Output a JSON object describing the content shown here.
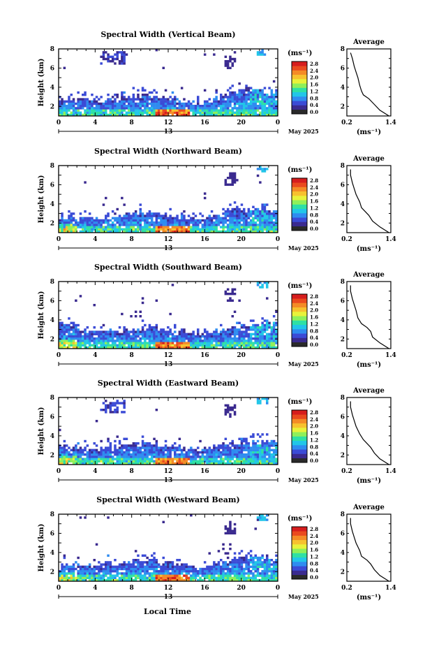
{
  "figure": {
    "footer_label": "Local Time",
    "date_label": "May 2025",
    "colorbar_unit": "(ms⁻¹)",
    "avg_unit": "(ms⁻¹)",
    "avg_title": "Average",
    "colorbar_ticks": [
      "0.0",
      "0.4",
      "0.8",
      "1.2",
      "1.6",
      "2.0",
      "2.4",
      "2.8"
    ],
    "colorbar_colors": [
      "#2a2a2a",
      "#3a2a8f",
      "#3b4bd6",
      "#2f8cf0",
      "#22c6e8",
      "#2fe0a4",
      "#8ff05a",
      "#e8f23a",
      "#f7c12e",
      "#f48b26",
      "#ea4a1e",
      "#d61d1d"
    ]
  },
  "chart_data": [
    {
      "type": "heatmap",
      "title": "Spectral Width (Vertical Beam)",
      "ylabel": "Height (km)",
      "xlabel": "Local Time",
      "x_ticks": [
        "0",
        "4",
        "8",
        "12",
        "16",
        "20",
        "0"
      ],
      "x_day": "13",
      "xlim": [
        0,
        24
      ],
      "y_ticks": [
        "2",
        "4",
        "6",
        "8"
      ],
      "ylim": [
        1,
        8
      ],
      "colorbar_range": [
        0.0,
        2.8
      ],
      "cloud_top_km": [
        2.6,
        2.7,
        2.8,
        2.7,
        2.6,
        2.7,
        2.9,
        3.0,
        3.1,
        3.1,
        3.0,
        3.0,
        2.8,
        2.5,
        2.4,
        2.4,
        2.6,
        2.9,
        3.3,
        3.6,
        3.8,
        3.7,
        3.6,
        3.5
      ],
      "average_profile": {
        "x": [
          1.35,
          1.1,
          0.95,
          0.8,
          0.65,
          0.6,
          0.55,
          0.5,
          0.45,
          0.4,
          0.35,
          0.3
        ],
        "y": [
          1.0,
          1.6,
          2.2,
          2.8,
          3.2,
          3.6,
          4.2,
          5.0,
          5.6,
          6.2,
          7.0,
          7.6
        ],
        "xlim": [
          0.2,
          1.4
        ],
        "ylim": [
          1,
          8
        ],
        "x_ticks": [
          "0.2",
          "1.4"
        ],
        "y_ticks": [
          "2",
          "4",
          "6",
          "8"
        ]
      }
    },
    {
      "type": "heatmap",
      "title": "Spectral Width (Northward Beam)",
      "ylabel": "Height (km)",
      "xlabel": "Local Time",
      "x_ticks": [
        "0",
        "4",
        "8",
        "12",
        "16",
        "20",
        "0"
      ],
      "x_day": "13",
      "xlim": [
        0,
        24
      ],
      "y_ticks": [
        "2",
        "4",
        "6",
        "8"
      ],
      "ylim": [
        1,
        8
      ],
      "colorbar_range": [
        0.0,
        2.8
      ],
      "cloud_top_km": [
        2.6,
        2.6,
        2.5,
        2.5,
        2.6,
        2.7,
        2.8,
        3.0,
        3.1,
        3.1,
        3.0,
        2.9,
        2.8,
        2.6,
        2.5,
        2.5,
        2.6,
        2.8,
        3.1,
        3.3,
        3.4,
        3.3,
        3.3,
        3.2
      ],
      "average_profile": {
        "x": [
          1.35,
          1.1,
          0.9,
          0.8,
          0.7,
          0.6,
          0.55,
          0.45,
          0.4,
          0.35,
          0.3,
          0.3
        ],
        "y": [
          1.0,
          1.6,
          2.2,
          2.8,
          3.2,
          3.6,
          4.2,
          5.0,
          5.6,
          6.2,
          7.0,
          7.6
        ],
        "xlim": [
          0.2,
          1.4
        ],
        "ylim": [
          1,
          8
        ],
        "x_ticks": [
          "0.2",
          "1.4"
        ],
        "y_ticks": [
          "2",
          "4",
          "6",
          "8"
        ]
      }
    },
    {
      "type": "heatmap",
      "title": "Spectral Width (Southward Beam)",
      "ylabel": "Height (km)",
      "xlabel": "Local Time",
      "x_ticks": [
        "0",
        "4",
        "8",
        "12",
        "16",
        "20",
        "0"
      ],
      "x_day": "13",
      "xlim": [
        0,
        24
      ],
      "y_ticks": [
        "2",
        "4",
        "6",
        "8"
      ],
      "ylim": [
        1,
        8
      ],
      "colorbar_range": [
        0.0,
        2.8
      ],
      "cloud_top_km": [
        3.6,
        3.4,
        3.0,
        2.8,
        2.7,
        2.7,
        2.8,
        2.9,
        3.0,
        3.1,
        3.1,
        3.0,
        2.9,
        2.8,
        2.6,
        2.6,
        2.7,
        2.8,
        3.0,
        3.2,
        3.4,
        3.5,
        3.6,
        3.6
      ],
      "average_profile": {
        "x": [
          1.35,
          1.1,
          0.9,
          0.85,
          0.75,
          0.6,
          0.5,
          0.45,
          0.4,
          0.35,
          0.3,
          0.3
        ],
        "y": [
          1.0,
          1.6,
          2.2,
          2.8,
          3.2,
          3.6,
          4.2,
          5.0,
          5.6,
          6.2,
          7.0,
          7.6
        ],
        "xlim": [
          0.2,
          1.4
        ],
        "ylim": [
          1,
          8
        ],
        "x_ticks": [
          "0.2",
          "1.4"
        ],
        "y_ticks": [
          "2",
          "4",
          "6",
          "8"
        ]
      }
    },
    {
      "type": "heatmap",
      "title": "Spectral Width (Eastward Beam)",
      "ylabel": "Height (km)",
      "xlabel": "Local Time",
      "x_ticks": [
        "0",
        "4",
        "8",
        "12",
        "16",
        "20",
        "0"
      ],
      "x_day": "13",
      "xlim": [
        0,
        24
      ],
      "y_ticks": [
        "2",
        "4",
        "6",
        "8"
      ],
      "ylim": [
        1,
        8
      ],
      "colorbar_range": [
        0.0,
        2.8
      ],
      "cloud_top_km": [
        3.0,
        2.9,
        2.8,
        2.7,
        2.7,
        2.8,
        2.9,
        3.0,
        3.1,
        3.2,
        3.2,
        3.1,
        3.0,
        2.8,
        2.7,
        2.6,
        2.7,
        2.9,
        3.1,
        3.3,
        3.5,
        3.6,
        3.5,
        3.4
      ],
      "average_profile": {
        "x": [
          1.35,
          1.1,
          0.95,
          0.85,
          0.75,
          0.65,
          0.55,
          0.45,
          0.4,
          0.35,
          0.3,
          0.3
        ],
        "y": [
          1.0,
          1.6,
          2.2,
          2.8,
          3.2,
          3.6,
          4.2,
          5.0,
          5.6,
          6.2,
          7.0,
          7.6
        ],
        "xlim": [
          0.2,
          1.4
        ],
        "ylim": [
          1,
          8
        ],
        "x_ticks": [
          "0.2",
          "1.4"
        ],
        "y_ticks": [
          "2",
          "4",
          "6",
          "8"
        ]
      }
    },
    {
      "type": "heatmap",
      "title": "Spectral Width (Westward Beam)",
      "ylabel": "Height (km)",
      "xlabel": "Local Time",
      "x_ticks": [
        "0",
        "4",
        "8",
        "12",
        "16",
        "20",
        "0"
      ],
      "x_day": "13",
      "xlim": [
        0,
        24
      ],
      "y_ticks": [
        "2",
        "4",
        "6",
        "8"
      ],
      "ylim": [
        1,
        8
      ],
      "colorbar_range": [
        0.0,
        2.8
      ],
      "cloud_top_km": [
        2.8,
        2.7,
        2.6,
        2.6,
        2.7,
        2.8,
        2.9,
        3.0,
        3.1,
        3.2,
        3.1,
        3.0,
        2.9,
        2.7,
        2.6,
        2.6,
        2.7,
        2.9,
        3.2,
        3.4,
        3.6,
        3.6,
        3.5,
        3.4
      ],
      "average_profile": {
        "x": [
          1.35,
          1.1,
          0.95,
          0.85,
          0.75,
          0.6,
          0.55,
          0.45,
          0.4,
          0.35,
          0.3,
          0.3
        ],
        "y": [
          1.0,
          1.6,
          2.2,
          2.8,
          3.2,
          3.6,
          4.2,
          5.0,
          5.6,
          6.2,
          7.0,
          7.6
        ],
        "xlim": [
          0.2,
          1.4
        ],
        "ylim": [
          1,
          8
        ],
        "x_ticks": [
          "0.2",
          "1.4"
        ],
        "y_ticks": [
          "2",
          "4",
          "6",
          "8"
        ]
      }
    }
  ]
}
